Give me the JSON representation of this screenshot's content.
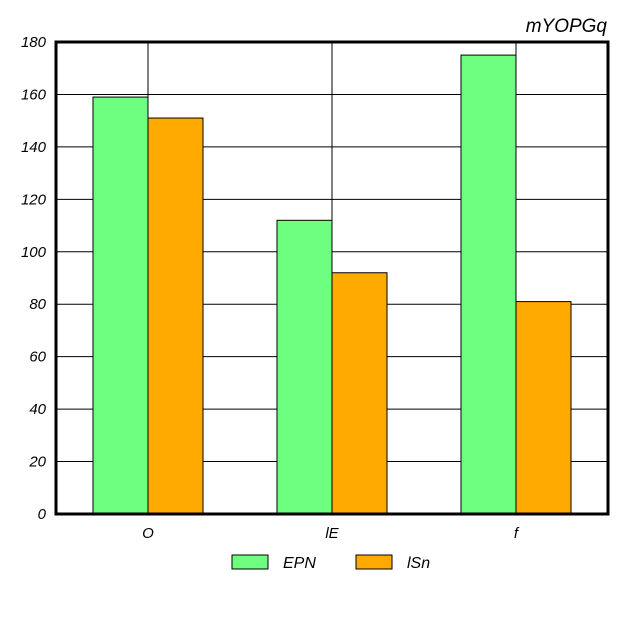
{
  "chart_data": {
    "type": "bar",
    "title": "mYOPGq",
    "xlabel": "",
    "ylabel": "",
    "categories": [
      "O",
      "lE",
      "f"
    ],
    "series": [
      {
        "name": "EPN",
        "values": [
          159,
          112,
          175
        ],
        "color": "#6fff80"
      },
      {
        "name": "lSn",
        "values": [
          151,
          92,
          81
        ],
        "color": "#ffaa00"
      }
    ],
    "ylim": [
      0,
      180
    ],
    "yticks": [
      0,
      20,
      40,
      60,
      80,
      100,
      120,
      140,
      160,
      180
    ],
    "grid": true,
    "legend_position": "bottom-center"
  }
}
